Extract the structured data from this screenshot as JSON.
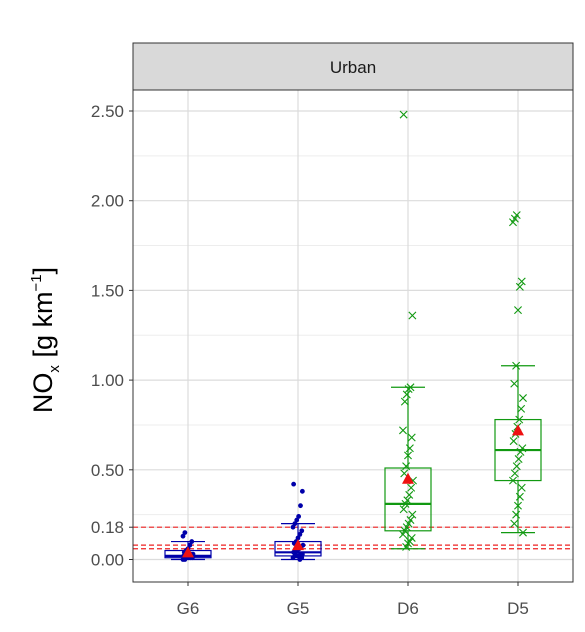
{
  "chart_data": {
    "type": "boxplot",
    "facet_label": "Urban",
    "ylabel": {
      "main": "NO",
      "sub": "x",
      "unit_prefix": " [g km",
      "unit_sup": "−1",
      "unit_suffix": "]"
    },
    "ylim": [
      -0.1,
      2.62
    ],
    "y_ticks": [
      {
        "value": 0.0,
        "label": "0.00"
      },
      {
        "value": 0.18,
        "label": "0.18"
      },
      {
        "value": 0.5,
        "label": "0.50"
      },
      {
        "value": 1.0,
        "label": "1.00"
      },
      {
        "value": 1.5,
        "label": "1.50"
      },
      {
        "value": 2.0,
        "label": "2.00"
      },
      {
        "value": 2.5,
        "label": "2.50"
      }
    ],
    "y_minor_grid": [
      0.25,
      0.75,
      1.25,
      1.75,
      2.25
    ],
    "categories": [
      "G6",
      "G5",
      "D6",
      "D5"
    ],
    "grid": true,
    "reference_lines": [
      {
        "value": 0.18,
        "color": "#ee2222",
        "style": "dashed"
      },
      {
        "value": 0.08,
        "color": "#ee2222",
        "style": "dashed"
      },
      {
        "value": 0.06,
        "color": "#ee2222",
        "style": "dashed"
      }
    ],
    "groups": [
      {
        "category": "G6",
        "color": "#0000aa",
        "marker": "dot",
        "whisker_low": 0.0,
        "q1": 0.01,
        "median": 0.02,
        "q3": 0.05,
        "whisker_high": 0.1,
        "mean": 0.04,
        "points": [
          0.0,
          0.0,
          0.01,
          0.01,
          0.01,
          0.01,
          0.02,
          0.02,
          0.02,
          0.02,
          0.03,
          0.03,
          0.04,
          0.05,
          0.06,
          0.08,
          0.1,
          0.13,
          0.15
        ]
      },
      {
        "category": "G5",
        "color": "#0000aa",
        "marker": "dot",
        "whisker_low": 0.0,
        "q1": 0.02,
        "median": 0.04,
        "q3": 0.1,
        "whisker_high": 0.2,
        "mean": 0.08,
        "points": [
          0.0,
          0.01,
          0.01,
          0.02,
          0.02,
          0.02,
          0.03,
          0.03,
          0.04,
          0.04,
          0.05,
          0.06,
          0.07,
          0.08,
          0.09,
          0.1,
          0.12,
          0.14,
          0.16,
          0.18,
          0.2,
          0.22,
          0.24,
          0.3,
          0.38,
          0.42
        ]
      },
      {
        "category": "D6",
        "color": "#119911",
        "marker": "x",
        "whisker_low": 0.06,
        "q1": 0.16,
        "median": 0.31,
        "q3": 0.51,
        "whisker_high": 0.96,
        "mean": 0.45,
        "points": [
          0.07,
          0.09,
          0.1,
          0.12,
          0.14,
          0.16,
          0.18,
          0.2,
          0.22,
          0.25,
          0.28,
          0.31,
          0.33,
          0.36,
          0.4,
          0.44,
          0.48,
          0.52,
          0.58,
          0.62,
          0.68,
          0.72,
          0.88,
          0.92,
          0.95,
          0.96,
          1.36,
          2.48
        ]
      },
      {
        "category": "D5",
        "color": "#119911",
        "marker": "x",
        "whisker_low": 0.15,
        "q1": 0.44,
        "median": 0.61,
        "q3": 0.78,
        "whisker_high": 1.08,
        "mean": 0.72,
        "points": [
          0.15,
          0.2,
          0.25,
          0.3,
          0.35,
          0.4,
          0.44,
          0.48,
          0.52,
          0.56,
          0.6,
          0.62,
          0.66,
          0.7,
          0.74,
          0.78,
          0.84,
          0.9,
          0.98,
          1.08,
          1.39,
          1.52,
          1.55,
          1.88,
          1.9,
          1.92
        ]
      }
    ]
  }
}
